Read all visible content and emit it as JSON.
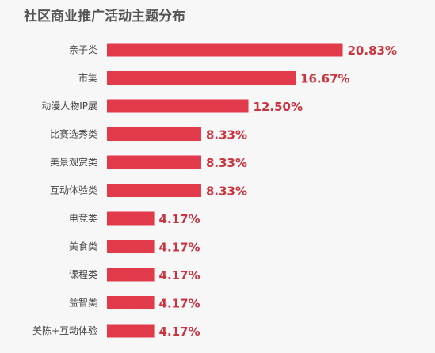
{
  "chart_data": {
    "type": "bar",
    "orientation": "horizontal",
    "title": "社区商业推广活动主题分布",
    "categories": [
      "亲子类",
      "市集",
      "动漫人物IP展",
      "比赛选秀类",
      "美景观赏类",
      "互动体验类",
      "电竞类",
      "美食类",
      "课程类",
      "益智类",
      "美陈+互动体验"
    ],
    "values": [
      20.83,
      16.67,
      12.5,
      8.33,
      8.33,
      8.33,
      4.17,
      4.17,
      4.17,
      4.17,
      4.17
    ],
    "value_labels": [
      "20.83%",
      "16.67%",
      "12.50%",
      "8.33%",
      "8.33%",
      "8.33%",
      "4.17%",
      "4.17%",
      "4.17%",
      "4.17%",
      "4.17%"
    ],
    "unit": "%",
    "xlim": [
      0,
      25
    ],
    "grid": false,
    "legend": "none",
    "bar_color": "#e13a4a",
    "label_color": "#c9343f"
  }
}
